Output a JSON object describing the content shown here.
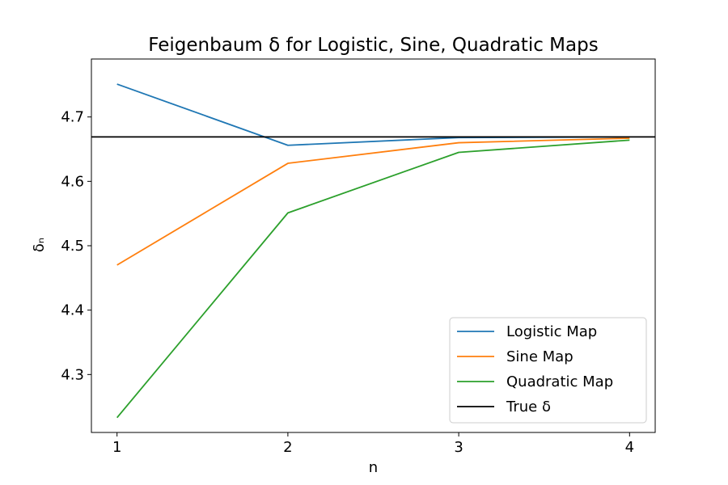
{
  "chart_data": {
    "type": "line",
    "title": "Feigenbaum δ for Logistic, Sine, Quadratic Maps",
    "xlabel": "n",
    "ylabel": "δₙ",
    "x": [
      1,
      2,
      3,
      4
    ],
    "xlim": [
      0.85,
      4.15
    ],
    "ylim": [
      4.21,
      4.79
    ],
    "xticks": [
      1,
      2,
      3,
      4
    ],
    "yticks": [
      4.3,
      4.4,
      4.5,
      4.6,
      4.7
    ],
    "grid": false,
    "legend_position": "lower-right",
    "series": [
      {
        "name": "Logistic Map",
        "color": "#1f77b4",
        "values": [
          4.751,
          4.656,
          4.668,
          4.669
        ]
      },
      {
        "name": "Sine Map",
        "color": "#ff7f0e",
        "values": [
          4.47,
          4.628,
          4.66,
          4.667
        ]
      },
      {
        "name": "Quadratic Map",
        "color": "#2ca02c",
        "values": [
          4.233,
          4.551,
          4.645,
          4.664
        ]
      }
    ],
    "reference_line": {
      "name": "True δ",
      "color": "#000000",
      "value": 4.669
    }
  }
}
